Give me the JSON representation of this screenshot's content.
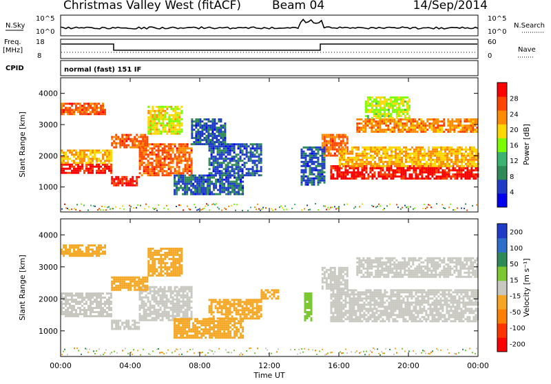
{
  "header": {
    "station": "Christmas Valley West (fitACF)",
    "beam": "Beam 04",
    "date": "14/Sep/2014"
  },
  "aux_panels": {
    "nsky_label": "N.Sky",
    "nsearch_label": "N.Search",
    "noise_ticks": [
      "10^5",
      "10^0"
    ],
    "freq_label": "Freq.",
    "freq_unit": "[MHz]",
    "freq_ticks": [
      "18",
      "8"
    ],
    "nave_label": "Nave",
    "nave_ticks": [
      "60",
      "0"
    ],
    "cpid_label": "CPID",
    "cpid_value": "normal (fast) 151 IF"
  },
  "colors": {
    "power_scale": [
      "#0000ee",
      "#1e3cc8",
      "#2e8b57",
      "#3cb371",
      "#7cfc00",
      "#ffd700",
      "#ff8c00",
      "#ff4500",
      "#ff0000"
    ],
    "velocity_scale": [
      "#1e3cc8",
      "#2e6ec8",
      "#2e8b57",
      "#7cc832",
      "#c8c8c0",
      "#f5a623",
      "#ff7f00",
      "#ff3300",
      "#ff0000"
    ]
  },
  "chart_data": [
    {
      "type": "heatmap",
      "name": "power",
      "ylabel": "Slant Range [km]",
      "yticks": [
        "1000",
        "2000",
        "3000",
        "4000"
      ],
      "ylim": [
        200,
        4500
      ],
      "xlim": [
        "00:00",
        "24:00"
      ],
      "colorbar_label": "Power [dB]",
      "colorbar_ticks": [
        "4",
        "8",
        "12",
        "16",
        "20",
        "24",
        "28"
      ],
      "colorbar_range": [
        0,
        30
      ],
      "bands": [
        {
          "t0": 0.0,
          "t1": 2.9,
          "r0": 1450,
          "r1": 1750,
          "v": 28
        },
        {
          "t0": 0.0,
          "t1": 2.9,
          "r0": 1750,
          "r1": 2200,
          "v": 20
        },
        {
          "t0": 0.0,
          "t1": 2.5,
          "r0": 3350,
          "r1": 3700,
          "v": 24
        },
        {
          "t0": 2.9,
          "t1": 4.5,
          "r0": 1050,
          "r1": 1350,
          "v": 28
        },
        {
          "t0": 4.5,
          "t1": 7.5,
          "r0": 1350,
          "r1": 2400,
          "v": 24
        },
        {
          "t0": 2.9,
          "t1": 5.0,
          "r0": 2300,
          "r1": 2700,
          "v": 24
        },
        {
          "t0": 5.0,
          "t1": 7.0,
          "r0": 2700,
          "r1": 3600,
          "v": 18
        },
        {
          "t0": 6.5,
          "t1": 10.5,
          "r0": 800,
          "r1": 1400,
          "v": 6
        },
        {
          "t0": 8.5,
          "t1": 11.5,
          "r0": 1400,
          "r1": 2400,
          "v": 6
        },
        {
          "t0": 7.5,
          "t1": 9.5,
          "r0": 2400,
          "r1": 3200,
          "v": 6
        },
        {
          "t0": 15.0,
          "t1": 16.5,
          "r0": 2000,
          "r1": 2700,
          "v": 24
        },
        {
          "t0": 15.5,
          "t1": 24.0,
          "r0": 1300,
          "r1": 1700,
          "v": 28
        },
        {
          "t0": 16.0,
          "t1": 24.0,
          "r0": 1700,
          "r1": 2300,
          "v": 20
        },
        {
          "t0": 17.0,
          "t1": 24.0,
          "r0": 2800,
          "r1": 3200,
          "v": 22
        },
        {
          "t0": 17.5,
          "t1": 20.0,
          "r0": 3200,
          "r1": 3900,
          "v": 16
        },
        {
          "t0": 13.8,
          "t1": 15.2,
          "r0": 1100,
          "r1": 2300,
          "v": 6
        }
      ]
    },
    {
      "type": "heatmap",
      "name": "velocity",
      "ylabel": "Slant Range [km]",
      "yticks": [
        "1000",
        "2000",
        "3000",
        "4000"
      ],
      "ylim": [
        200,
        4500
      ],
      "xlabel": "Time UT",
      "xticks": [
        "00:00",
        "04:00",
        "08:00",
        "12:00",
        "16:00",
        "20:00",
        "00:00"
      ],
      "xlim": [
        "00:00",
        "24:00"
      ],
      "colorbar_label": "Velocity [m s⁻¹]",
      "colorbar_ticks": [
        "200",
        "100",
        "50",
        "15",
        "-15",
        "-50",
        "-100",
        "-200"
      ],
      "colorbar_range": [
        -250,
        250
      ],
      "bands": [
        {
          "t0": 0.0,
          "t1": 2.9,
          "r0": 1450,
          "r1": 2200,
          "v": 0
        },
        {
          "t0": 0.0,
          "t1": 2.5,
          "r0": 3350,
          "r1": 3700,
          "v": -40
        },
        {
          "t0": 2.9,
          "t1": 4.5,
          "r0": 1050,
          "r1": 1350,
          "v": 0
        },
        {
          "t0": 4.5,
          "t1": 7.5,
          "r0": 1350,
          "r1": 2400,
          "v": 0
        },
        {
          "t0": 2.9,
          "t1": 5.0,
          "r0": 2300,
          "r1": 2700,
          "v": -40
        },
        {
          "t0": 5.0,
          "t1": 7.0,
          "r0": 2700,
          "r1": 3600,
          "v": -40
        },
        {
          "t0": 6.5,
          "t1": 10.5,
          "r0": 800,
          "r1": 1400,
          "v": -40
        },
        {
          "t0": 8.5,
          "t1": 11.5,
          "r0": 1400,
          "r1": 2000,
          "v": -60
        },
        {
          "t0": 11.5,
          "t1": 12.5,
          "r0": 2000,
          "r1": 2300,
          "v": -60
        },
        {
          "t0": 14.0,
          "t1": 14.4,
          "r0": 1300,
          "r1": 2200,
          "v": 40
        },
        {
          "t0": 15.5,
          "t1": 24.0,
          "r0": 1300,
          "r1": 2300,
          "v": 0
        },
        {
          "t0": 17.0,
          "t1": 24.0,
          "r0": 2700,
          "r1": 3300,
          "v": 0
        },
        {
          "t0": 15.0,
          "t1": 16.5,
          "r0": 2300,
          "r1": 3000,
          "v": 0
        }
      ]
    }
  ]
}
